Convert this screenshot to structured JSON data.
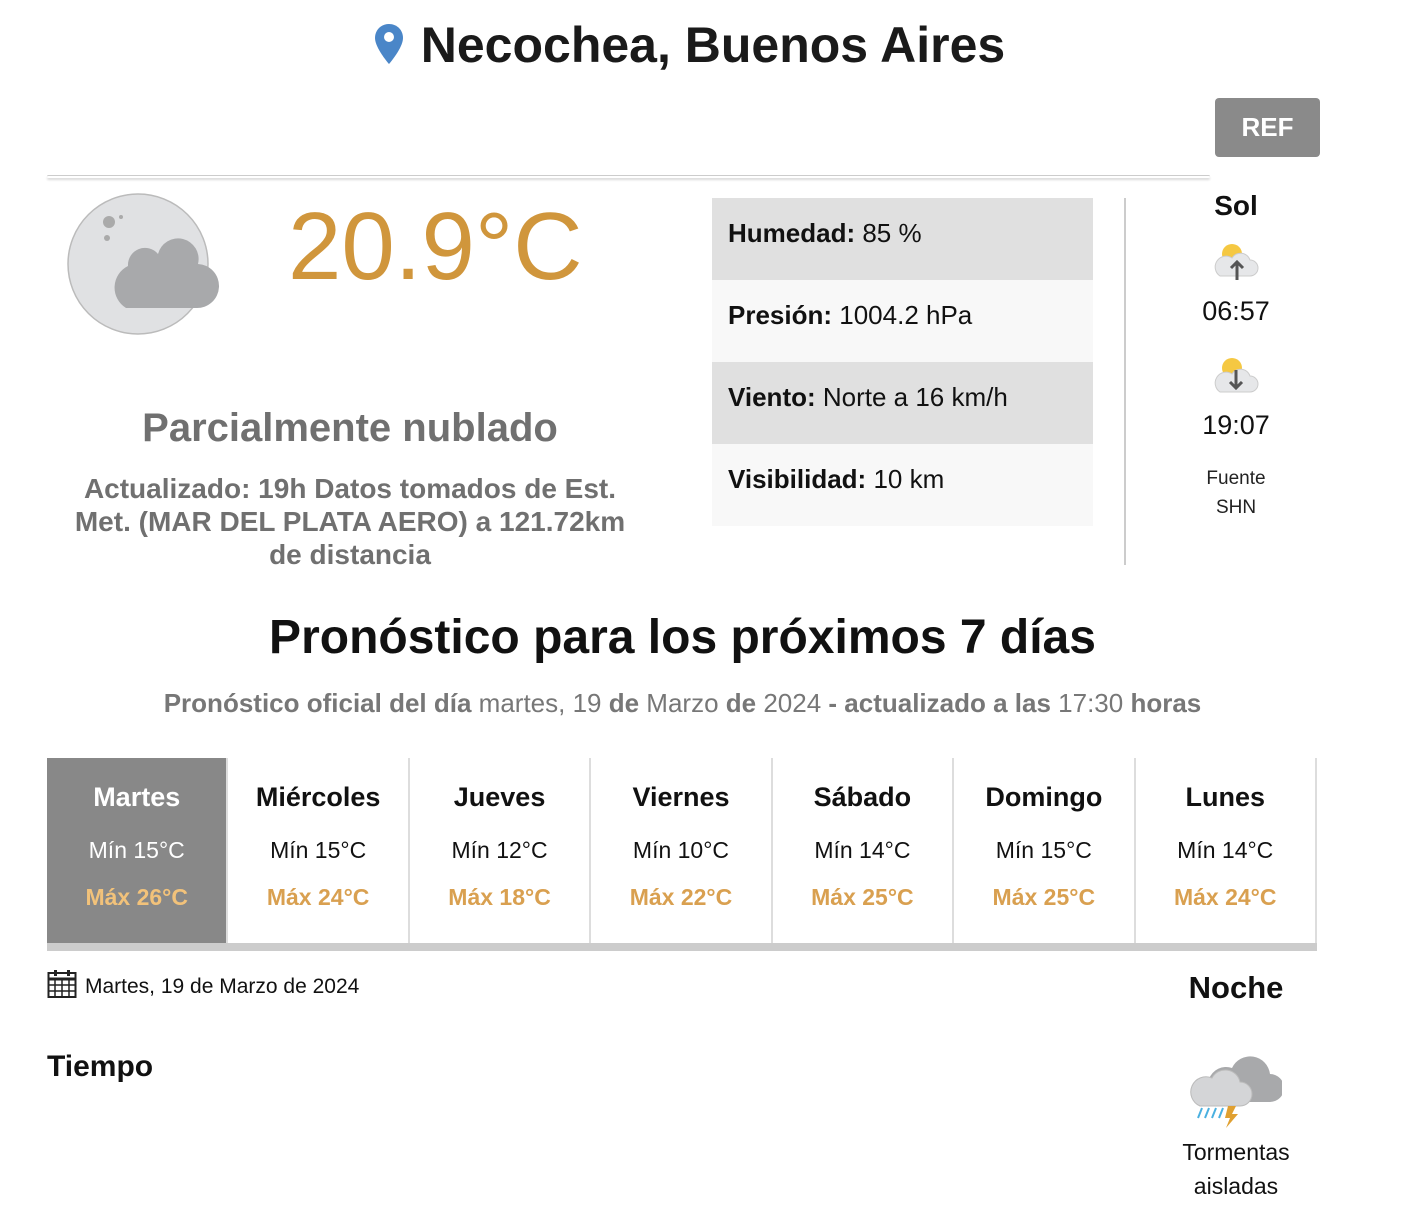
{
  "header": {
    "title": "Necochea, Buenos Aires",
    "ref_label": "REF"
  },
  "current": {
    "temperature": "20.9°C",
    "condition": "Parcialmente nublado",
    "updated": "Actualizado: 19h Datos tomados de Est. Met. (MAR DEL PLATA AERO) a 121.72km de distancia",
    "icon": "partly-cloudy-night-icon",
    "accent_color": "#d0963c"
  },
  "details": [
    {
      "label": "Humedad:",
      "value": " 85 %"
    },
    {
      "label": "Presión:",
      "value": " 1004.2 hPa"
    },
    {
      "label": "Viento:",
      "value": " Norte a 16 km/h"
    },
    {
      "label": "Visibilidad:",
      "value": " 10 km"
    }
  ],
  "sun": {
    "title": "Sol",
    "sunrise": "06:57",
    "sunset": "19:07",
    "source_line1": "Fuente",
    "source_line2": "SHN"
  },
  "forecast": {
    "title": "Pronóstico para los próximos 7 días",
    "subtitle": {
      "p1": "Pronóstico oficial del día",
      "p2": " martes, 19 ",
      "p3": "de",
      "p4": " Marzo ",
      "p5": "de",
      "p6": " 2024 ",
      "p7": "- actualizado a las",
      "p8": " 17:30 ",
      "p9": "horas"
    },
    "days": [
      {
        "name": "Martes",
        "min": "Mín 15°C",
        "max": "Máx 26°C",
        "selected": true
      },
      {
        "name": "Miércoles",
        "min": "Mín 15°C",
        "max": "Máx 24°C"
      },
      {
        "name": "Jueves",
        "min": "Mín 12°C",
        "max": "Máx 18°C"
      },
      {
        "name": "Viernes",
        "min": "Mín 10°C",
        "max": "Máx 22°C"
      },
      {
        "name": "Sábado",
        "min": "Mín 14°C",
        "max": "Máx 25°C"
      },
      {
        "name": "Domingo",
        "min": "Mín 15°C",
        "max": "Máx 25°C"
      },
      {
        "name": "Lunes",
        "min": "Mín 14°C",
        "max": "Máx 24°C"
      }
    ]
  },
  "detail": {
    "date": "Martes, 19 de Marzo de 2024",
    "tiempo_label": "Tiempo",
    "night_label": "Noche",
    "night_condition_1": "Tormentas",
    "night_condition_2": "aisladas",
    "night_icon": "thunderstorm-icon"
  }
}
